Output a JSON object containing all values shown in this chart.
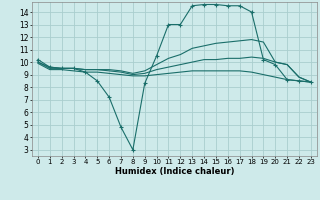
{
  "xlabel": "Humidex (Indice chaleur)",
  "bg_color": "#ceeaea",
  "grid_color": "#aacece",
  "line_color": "#1a6e6a",
  "x_ticks": [
    0,
    1,
    2,
    3,
    4,
    5,
    6,
    7,
    8,
    9,
    10,
    11,
    12,
    13,
    14,
    15,
    16,
    17,
    18,
    19,
    20,
    21,
    22,
    23
  ],
  "y_ticks": [
    3,
    4,
    5,
    6,
    7,
    8,
    9,
    10,
    11,
    12,
    13,
    14
  ],
  "ylim": [
    2.5,
    14.8
  ],
  "xlim": [
    -0.5,
    23.5
  ],
  "series": [
    {
      "x": [
        0,
        1,
        2,
        3,
        4,
        5,
        6,
        7,
        8,
        9,
        10,
        11,
        12,
        13,
        14,
        15,
        16,
        17,
        18,
        19,
        20,
        21,
        22,
        23
      ],
      "y": [
        10.2,
        9.6,
        9.5,
        9.5,
        9.2,
        8.5,
        7.2,
        4.8,
        3.0,
        8.3,
        10.5,
        13.0,
        13.0,
        14.5,
        14.6,
        14.6,
        14.5,
        14.5,
        14.0,
        10.2,
        9.8,
        8.6,
        8.5,
        8.4
      ],
      "has_markers": true
    },
    {
      "x": [
        0,
        1,
        2,
        3,
        4,
        5,
        6,
        7,
        8,
        9,
        10,
        11,
        12,
        13,
        14,
        15,
        16,
        17,
        18,
        19,
        20,
        21,
        22,
        23
      ],
      "y": [
        10.0,
        9.6,
        9.5,
        9.5,
        9.4,
        9.4,
        9.4,
        9.3,
        9.1,
        9.3,
        9.8,
        10.3,
        10.6,
        11.1,
        11.3,
        11.5,
        11.6,
        11.7,
        11.8,
        11.6,
        10.0,
        9.8,
        8.8,
        8.4
      ],
      "has_markers": false
    },
    {
      "x": [
        0,
        1,
        2,
        3,
        4,
        5,
        6,
        7,
        8,
        9,
        10,
        11,
        12,
        13,
        14,
        15,
        16,
        17,
        18,
        19,
        20,
        21,
        22,
        23
      ],
      "y": [
        10.0,
        9.5,
        9.5,
        9.5,
        9.4,
        9.4,
        9.3,
        9.2,
        9.0,
        9.1,
        9.4,
        9.6,
        9.8,
        10.0,
        10.2,
        10.2,
        10.3,
        10.3,
        10.4,
        10.3,
        10.0,
        9.8,
        8.8,
        8.4
      ],
      "has_markers": false
    },
    {
      "x": [
        0,
        1,
        2,
        3,
        4,
        5,
        6,
        7,
        8,
        9,
        10,
        11,
        12,
        13,
        14,
        15,
        16,
        17,
        18,
        19,
        20,
        21,
        22,
        23
      ],
      "y": [
        9.9,
        9.4,
        9.4,
        9.3,
        9.2,
        9.2,
        9.1,
        9.0,
        8.9,
        8.9,
        9.0,
        9.1,
        9.2,
        9.3,
        9.3,
        9.3,
        9.3,
        9.3,
        9.2,
        9.0,
        8.8,
        8.6,
        8.5,
        8.4
      ],
      "has_markers": false
    }
  ]
}
